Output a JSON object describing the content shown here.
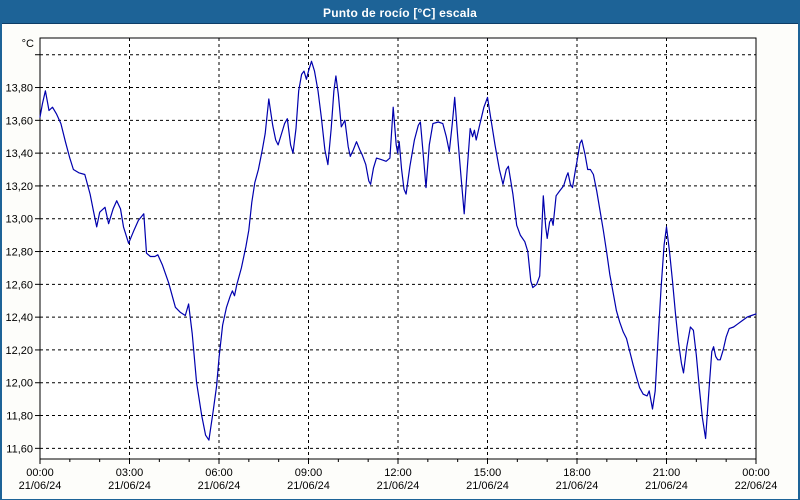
{
  "window": {
    "title": "Punto de rocío [°C] escala"
  },
  "colors": {
    "frame_blue": "#1D6397",
    "title_text": "#FFFFFF",
    "plot_bg": "#FFFFFF",
    "grid": "#000000",
    "axis": "#000000",
    "series_line": "#0000AE"
  },
  "chart_data": {
    "type": "line",
    "title": "Punto de rocío [°C] escala",
    "y_axis_unit": "°C",
    "xlabel": "",
    "ylabel": "°C",
    "xlim_hours": [
      0,
      24
    ],
    "ylim": [
      11.535,
      14.102
    ],
    "grid": "dashed",
    "legend_position": "none",
    "y_grid": [
      {
        "v": 14.0,
        "label": ""
      },
      {
        "v": 13.8,
        "label": "13,80"
      },
      {
        "v": 13.6,
        "label": "13,60"
      },
      {
        "v": 13.4,
        "label": "13,40"
      },
      {
        "v": 13.2,
        "label": "13,20"
      },
      {
        "v": 13.0,
        "label": "13,00"
      },
      {
        "v": 12.8,
        "label": "12,80"
      },
      {
        "v": 12.6,
        "label": "12,60"
      },
      {
        "v": 12.4,
        "label": "12,40"
      },
      {
        "v": 12.2,
        "label": "12,20"
      },
      {
        "v": 12.0,
        "label": "12,00"
      },
      {
        "v": 11.8,
        "label": "11,80"
      },
      {
        "v": 11.6,
        "label": "11,60"
      }
    ],
    "x_ticks": [
      {
        "h": 0,
        "time": "00:00",
        "date": "21/06/24",
        "gridline": false
      },
      {
        "h": 3,
        "time": "03:00",
        "date": "21/06/24",
        "gridline": true
      },
      {
        "h": 6,
        "time": "06:00",
        "date": "21/06/24",
        "gridline": true
      },
      {
        "h": 9,
        "time": "09:00",
        "date": "21/06/24",
        "gridline": true
      },
      {
        "h": 12,
        "time": "12:00",
        "date": "21/06/24",
        "gridline": true
      },
      {
        "h": 15,
        "time": "15:00",
        "date": "21/06/24",
        "gridline": true
      },
      {
        "h": 18,
        "time": "18:00",
        "date": "21/06/24",
        "gridline": true
      },
      {
        "h": 21,
        "time": "21:00",
        "date": "21/06/24",
        "gridline": true
      },
      {
        "h": 24,
        "time": "00:00",
        "date": "22/06/24",
        "gridline": false
      }
    ],
    "x_minor_tick_step_hours": 1,
    "series": [
      {
        "name": "Punto de rocío",
        "points": [
          [
            0,
            13.62
          ],
          [
            0.08,
            13.7
          ],
          [
            0.18,
            13.78
          ],
          [
            0.3,
            13.66
          ],
          [
            0.42,
            13.68
          ],
          [
            0.55,
            13.64
          ],
          [
            0.7,
            13.58
          ],
          [
            0.85,
            13.47
          ],
          [
            1,
            13.37
          ],
          [
            1.12,
            13.3
          ],
          [
            1.3,
            13.28
          ],
          [
            1.5,
            13.27
          ],
          [
            1.68,
            13.15
          ],
          [
            1.8,
            13.04
          ],
          [
            1.9,
            12.95
          ],
          [
            2,
            13.04
          ],
          [
            2.18,
            13.07
          ],
          [
            2.3,
            12.97
          ],
          [
            2.45,
            13.06
          ],
          [
            2.57,
            13.11
          ],
          [
            2.7,
            13.06
          ],
          [
            2.8,
            12.95
          ],
          [
            2.97,
            12.85
          ],
          [
            3.15,
            12.93
          ],
          [
            3.3,
            12.99
          ],
          [
            3.48,
            13.03
          ],
          [
            3.57,
            12.79
          ],
          [
            3.7,
            12.77
          ],
          [
            3.85,
            12.77
          ],
          [
            3.95,
            12.78
          ],
          [
            4.1,
            12.72
          ],
          [
            4.31,
            12.61
          ],
          [
            4.54,
            12.46
          ],
          [
            4.7,
            12.43
          ],
          [
            4.87,
            12.41
          ],
          [
            4.98,
            12.48
          ],
          [
            5.1,
            12.3
          ],
          [
            5.25,
            12
          ],
          [
            5.42,
            11.8
          ],
          [
            5.55,
            11.68
          ],
          [
            5.66,
            11.65
          ],
          [
            5.8,
            11.82
          ],
          [
            5.92,
            11.98
          ],
          [
            6,
            12.15
          ],
          [
            6.12,
            12.35
          ],
          [
            6.25,
            12.46
          ],
          [
            6.38,
            12.53
          ],
          [
            6.45,
            12.56
          ],
          [
            6.52,
            12.53
          ],
          [
            6.6,
            12.6
          ],
          [
            6.75,
            12.7
          ],
          [
            6.9,
            12.83
          ],
          [
            7,
            12.93
          ],
          [
            7.1,
            13.1
          ],
          [
            7.2,
            13.22
          ],
          [
            7.32,
            13.3
          ],
          [
            7.45,
            13.42
          ],
          [
            7.55,
            13.52
          ],
          [
            7.67,
            13.73
          ],
          [
            7.8,
            13.57
          ],
          [
            7.9,
            13.48
          ],
          [
            7.98,
            13.45
          ],
          [
            8.1,
            13.52
          ],
          [
            8.2,
            13.58
          ],
          [
            8.29,
            13.61
          ],
          [
            8.4,
            13.45
          ],
          [
            8.48,
            13.4
          ],
          [
            8.58,
            13.55
          ],
          [
            8.67,
            13.78
          ],
          [
            8.77,
            13.88
          ],
          [
            8.85,
            13.9
          ],
          [
            8.93,
            13.85
          ],
          [
            9,
            13.9
          ],
          [
            9.1,
            13.96
          ],
          [
            9.2,
            13.9
          ],
          [
            9.32,
            13.78
          ],
          [
            9.43,
            13.62
          ],
          [
            9.55,
            13.42
          ],
          [
            9.65,
            13.33
          ],
          [
            9.76,
            13.55
          ],
          [
            9.85,
            13.78
          ],
          [
            9.92,
            13.87
          ],
          [
            10,
            13.76
          ],
          [
            10.1,
            13.56
          ],
          [
            10.22,
            13.6
          ],
          [
            10.33,
            13.44
          ],
          [
            10.4,
            13.38
          ],
          [
            10.5,
            13.42
          ],
          [
            10.61,
            13.47
          ],
          [
            10.72,
            13.42
          ],
          [
            10.8,
            13.39
          ],
          [
            10.92,
            13.33
          ],
          [
            11.02,
            13.23
          ],
          [
            11.08,
            13.21
          ],
          [
            11.18,
            13.31
          ],
          [
            11.28,
            13.37
          ],
          [
            11.45,
            13.36
          ],
          [
            11.6,
            13.35
          ],
          [
            11.73,
            13.37
          ],
          [
            11.84,
            13.68
          ],
          [
            11.94,
            13.45
          ],
          [
            11.99,
            13.4
          ],
          [
            12.04,
            13.47
          ],
          [
            12.12,
            13.3
          ],
          [
            12.2,
            13.18
          ],
          [
            12.27,
            13.15
          ],
          [
            12.4,
            13.32
          ],
          [
            12.55,
            13.48
          ],
          [
            12.68,
            13.57
          ],
          [
            12.75,
            13.59
          ],
          [
            12.85,
            13.38
          ],
          [
            12.94,
            13.19
          ],
          [
            13.05,
            13.45
          ],
          [
            13.17,
            13.58
          ],
          [
            13.35,
            13.59
          ],
          [
            13.5,
            13.58
          ],
          [
            13.62,
            13.5
          ],
          [
            13.72,
            13.41
          ],
          [
            13.82,
            13.58
          ],
          [
            13.9,
            13.74
          ],
          [
            14,
            13.5
          ],
          [
            14.1,
            13.28
          ],
          [
            14.22,
            13.03
          ],
          [
            14.32,
            13.3
          ],
          [
            14.42,
            13.55
          ],
          [
            14.5,
            13.5
          ],
          [
            14.56,
            13.54
          ],
          [
            14.62,
            13.48
          ],
          [
            14.75,
            13.58
          ],
          [
            14.88,
            13.68
          ],
          [
            15,
            13.74
          ],
          [
            15.12,
            13.6
          ],
          [
            15.25,
            13.45
          ],
          [
            15.4,
            13.3
          ],
          [
            15.52,
            13.21
          ],
          [
            15.63,
            13.3
          ],
          [
            15.7,
            13.32
          ],
          [
            15.85,
            13.15
          ],
          [
            15.98,
            12.96
          ],
          [
            16.1,
            12.9
          ],
          [
            16.25,
            12.86
          ],
          [
            16.35,
            12.8
          ],
          [
            16.45,
            12.62
          ],
          [
            16.52,
            12.58
          ],
          [
            16.65,
            12.6
          ],
          [
            16.75,
            12.65
          ],
          [
            16.87,
            13.14
          ],
          [
            16.95,
            12.95
          ],
          [
            17,
            12.88
          ],
          [
            17.08,
            12.98
          ],
          [
            17.15,
            13
          ],
          [
            17.2,
            12.96
          ],
          [
            17.3,
            13.14
          ],
          [
            17.42,
            13.17
          ],
          [
            17.55,
            13.2
          ],
          [
            17.65,
            13.26
          ],
          [
            17.7,
            13.28
          ],
          [
            17.78,
            13.21
          ],
          [
            17.85,
            13.19
          ],
          [
            17.95,
            13.3
          ],
          [
            18,
            13.35
          ],
          [
            18.1,
            13.46
          ],
          [
            18.16,
            13.48
          ],
          [
            18.27,
            13.39
          ],
          [
            18.36,
            13.3
          ],
          [
            18.45,
            13.3
          ],
          [
            18.55,
            13.27
          ],
          [
            18.66,
            13.17
          ],
          [
            18.77,
            13.05
          ],
          [
            18.88,
            12.93
          ],
          [
            19,
            12.79
          ],
          [
            19.1,
            12.66
          ],
          [
            19.21,
            12.55
          ],
          [
            19.32,
            12.44
          ],
          [
            19.43,
            12.37
          ],
          [
            19.55,
            12.31
          ],
          [
            19.66,
            12.27
          ],
          [
            19.77,
            12.19
          ],
          [
            19.88,
            12.11
          ],
          [
            20,
            12.03
          ],
          [
            20.1,
            11.97
          ],
          [
            20.22,
            11.93
          ],
          [
            20.35,
            11.92
          ],
          [
            20.42,
            11.95
          ],
          [
            20.53,
            11.84
          ],
          [
            20.62,
            11.95
          ],
          [
            20.72,
            12.27
          ],
          [
            20.82,
            12.58
          ],
          [
            20.92,
            12.84
          ],
          [
            21,
            12.95
          ],
          [
            21.1,
            12.8
          ],
          [
            21.2,
            12.62
          ],
          [
            21.3,
            12.42
          ],
          [
            21.4,
            12.25
          ],
          [
            21.5,
            12.12
          ],
          [
            21.57,
            12.06
          ],
          [
            21.68,
            12.22
          ],
          [
            21.8,
            12.34
          ],
          [
            21.9,
            12.32
          ],
          [
            22,
            12.17
          ],
          [
            22.1,
            11.97
          ],
          [
            22.2,
            11.79
          ],
          [
            22.31,
            11.66
          ],
          [
            22.42,
            11.95
          ],
          [
            22.52,
            12.19
          ],
          [
            22.58,
            12.22
          ],
          [
            22.65,
            12.16
          ],
          [
            22.72,
            12.14
          ],
          [
            22.8,
            12.14
          ],
          [
            22.9,
            12.2
          ],
          [
            23,
            12.28
          ],
          [
            23.1,
            12.33
          ],
          [
            23.25,
            12.34
          ],
          [
            23.4,
            12.36
          ],
          [
            23.55,
            12.38
          ],
          [
            23.7,
            12.4
          ],
          [
            23.85,
            12.41
          ],
          [
            24,
            12.42
          ]
        ]
      }
    ]
  }
}
